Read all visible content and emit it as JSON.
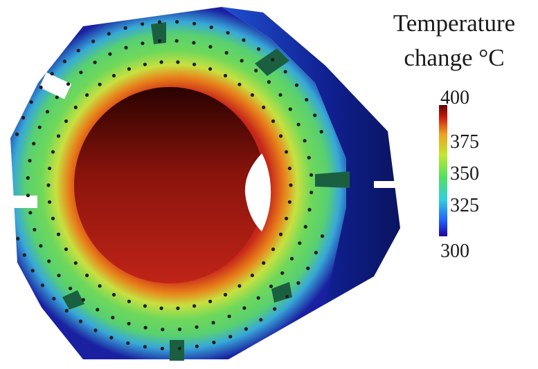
{
  "legend": {
    "title_line1": "Temperature",
    "title_line2": "change °C",
    "ticks": [
      "400",
      "375",
      "350",
      "325",
      "300"
    ],
    "range": [
      300,
      400
    ],
    "colormap": [
      "#2000a0",
      "#2060ff",
      "#30d0e0",
      "#50e060",
      "#c0e830",
      "#f0a020",
      "#d02010",
      "#600000"
    ]
  },
  "model": {
    "description_colors": {
      "inner_bore": "#8a1a12",
      "hot_ring": "#e07818",
      "warm_band": "#7fd84f",
      "outer_edge": "#2030c0"
    }
  }
}
